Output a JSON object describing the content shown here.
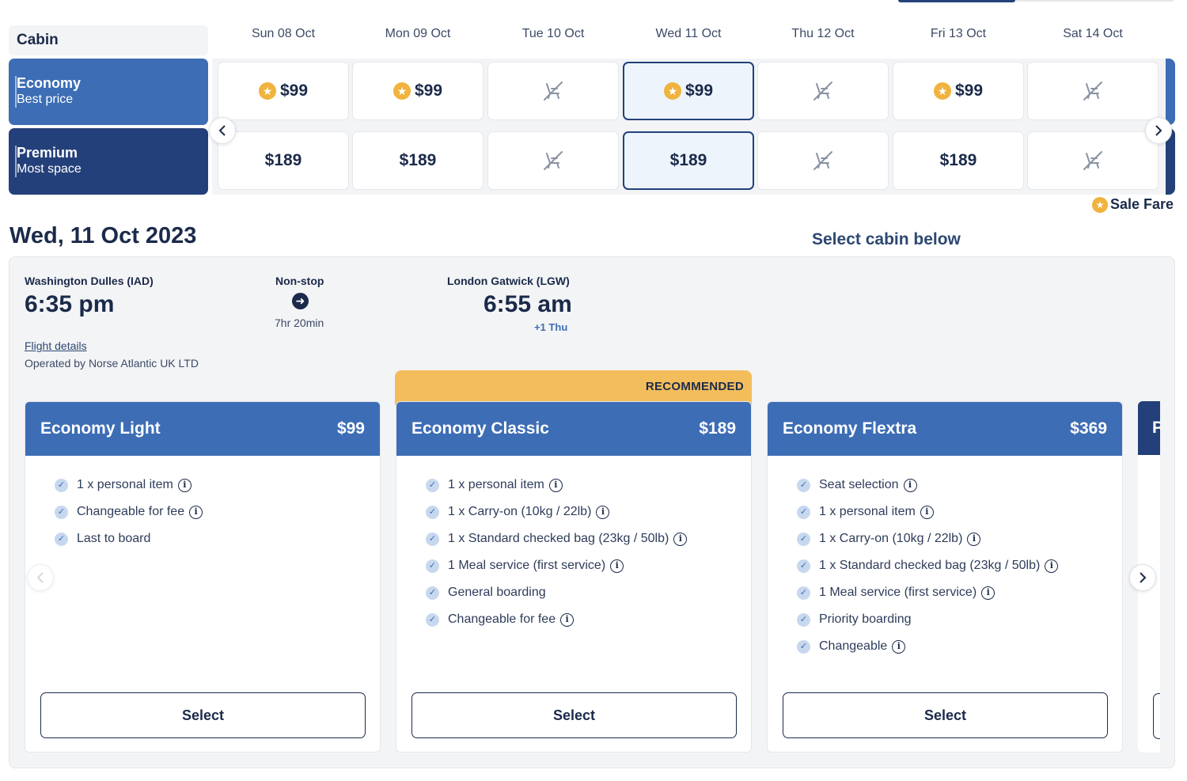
{
  "cabin_header": "Cabin",
  "cabins": [
    {
      "name": "Economy",
      "sub": "Best price"
    },
    {
      "name": "Premium",
      "sub": "Most space"
    }
  ],
  "dates": [
    "Sun 08 Oct",
    "Mon 09 Oct",
    "Tue 10 Oct",
    "Wed 11 Oct",
    "Thu 12 Oct",
    "Fri 13 Oct",
    "Sat 14 Oct"
  ],
  "fares": {
    "economy": [
      {
        "price": "$99",
        "sale": true
      },
      {
        "price": "$99",
        "sale": true
      },
      {
        "price": "",
        "sale": false
      },
      {
        "price": "$99",
        "sale": true
      },
      {
        "price": "",
        "sale": false
      },
      {
        "price": "$99",
        "sale": true
      },
      {
        "price": "",
        "sale": false
      }
    ],
    "premium": [
      {
        "price": "$189"
      },
      {
        "price": "$189"
      },
      {
        "price": ""
      },
      {
        "price": "$189"
      },
      {
        "price": ""
      },
      {
        "price": "$189"
      },
      {
        "price": ""
      }
    ]
  },
  "sale_legend": "Sale Fare",
  "selected_date_title": "Wed, 11 Oct 2023",
  "select_cabin_below": "Select cabin below",
  "flight": {
    "origin": "Washington Dulles (IAD)",
    "depart_time": "6:35 pm",
    "stops": "Non-stop",
    "duration": "7hr 20min",
    "destination": "London Gatwick (LGW)",
    "arrive_time": "6:55 am",
    "arrive_day": "+1 Thu",
    "details_link": "Flight details",
    "operated_by": "Operated by Norse Atlantic UK LTD"
  },
  "recommended_label": "RECOMMENDED",
  "cards": [
    {
      "title": "Economy Light",
      "price": "$99",
      "select": "Select",
      "features": [
        {
          "text": "1 x personal item",
          "info": true
        },
        {
          "text": "Changeable for fee",
          "info": true
        },
        {
          "text": "Last to board",
          "info": false
        }
      ]
    },
    {
      "title": "Economy Classic",
      "price": "$189",
      "select": "Select",
      "features": [
        {
          "text": "1 x personal item",
          "info": true
        },
        {
          "text": "1 x Carry-on (10kg / 22lb)",
          "info": true
        },
        {
          "text": "1 x Standard checked bag (23kg / 50lb)",
          "info": true
        },
        {
          "text": "1 Meal service (first service)",
          "info": true
        },
        {
          "text": "General boarding",
          "info": false
        },
        {
          "text": "Changeable for fee",
          "info": true
        }
      ]
    },
    {
      "title": "Economy Flextra",
      "price": "$369",
      "select": "Select",
      "features": [
        {
          "text": "Seat selection",
          "info": true
        },
        {
          "text": "1 x personal item",
          "info": true
        },
        {
          "text": "1 x Carry-on (10kg / 22lb)",
          "info": true
        },
        {
          "text": "1 x Standard checked bag (23kg / 50lb)",
          "info": true
        },
        {
          "text": "1 Meal service (first service)",
          "info": true
        },
        {
          "text": "Priority boarding",
          "info": false
        },
        {
          "text": "Changeable",
          "info": true
        }
      ]
    }
  ],
  "peek_card_initial": "P",
  "colors": {
    "economy": "#3d6db5",
    "premium": "#24407a",
    "sale_star": "#f0b33e",
    "recommended": "#f3bd5c"
  }
}
